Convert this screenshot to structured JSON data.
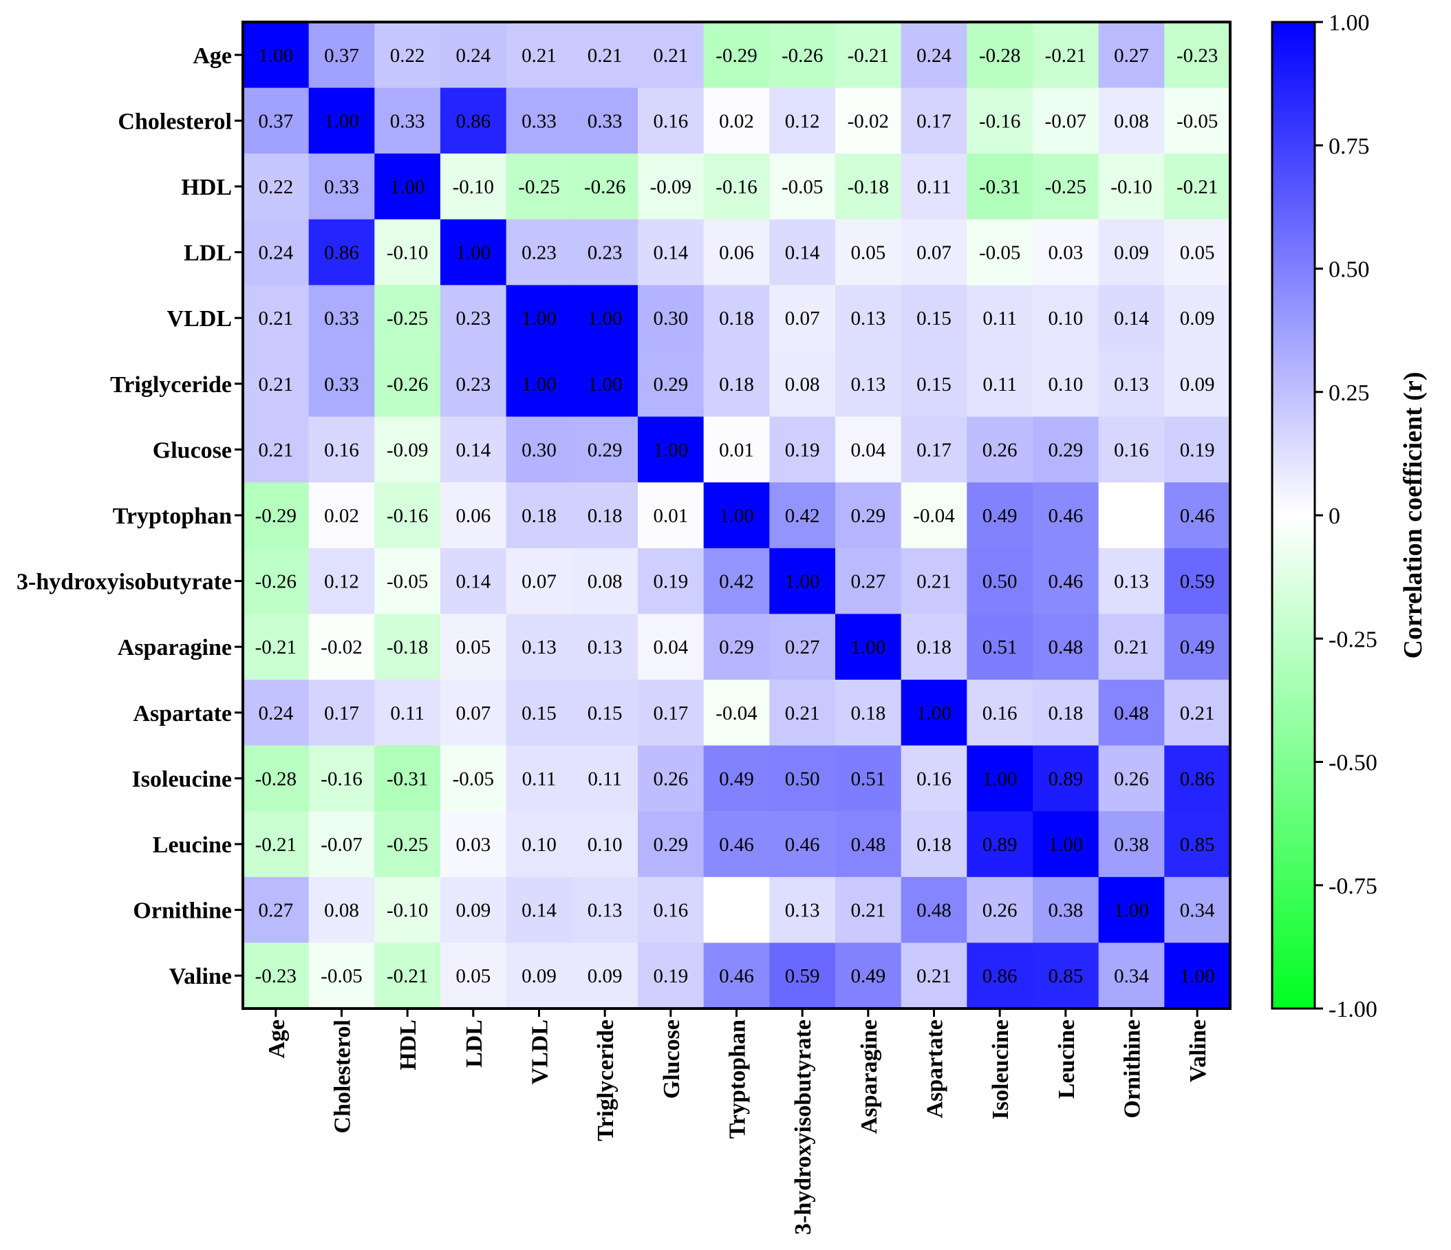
{
  "chart_data": {
    "type": "heatmap",
    "variables": [
      "Age",
      "Cholesterol",
      "HDL",
      "LDL",
      "VLDL",
      "Triglyceride",
      "Glucose",
      "Tryptophan",
      "3-hydroxyisobutyrate",
      "Asparagine",
      "Aspartate",
      "Isoleucine",
      "Leucine",
      "Ornithine",
      "Valine"
    ],
    "values": [
      [
        1.0,
        0.37,
        0.22,
        0.24,
        0.21,
        0.21,
        0.21,
        -0.29,
        -0.26,
        -0.21,
        0.24,
        -0.28,
        -0.21,
        0.27,
        -0.23
      ],
      [
        0.37,
        1.0,
        0.33,
        0.86,
        0.33,
        0.33,
        0.16,
        0.02,
        0.12,
        -0.02,
        0.17,
        -0.16,
        -0.07,
        0.08,
        -0.05
      ],
      [
        0.22,
        0.33,
        1.0,
        -0.1,
        -0.25,
        -0.26,
        -0.09,
        -0.16,
        -0.05,
        -0.18,
        0.11,
        -0.31,
        -0.25,
        -0.1,
        -0.21
      ],
      [
        0.24,
        0.86,
        -0.1,
        1.0,
        0.23,
        0.23,
        0.14,
        0.06,
        0.14,
        0.05,
        0.07,
        -0.05,
        0.03,
        0.09,
        0.05
      ],
      [
        0.21,
        0.33,
        -0.25,
        0.23,
        1.0,
        1.0,
        0.3,
        0.18,
        0.07,
        0.13,
        0.15,
        0.11,
        0.1,
        0.14,
        0.09
      ],
      [
        0.21,
        0.33,
        -0.26,
        0.23,
        1.0,
        1.0,
        0.29,
        0.18,
        0.08,
        0.13,
        0.15,
        0.11,
        0.1,
        0.13,
        0.09
      ],
      [
        0.21,
        0.16,
        -0.09,
        0.14,
        0.3,
        0.29,
        1.0,
        0.01,
        0.19,
        0.04,
        0.17,
        0.26,
        0.29,
        0.16,
        0.19
      ],
      [
        -0.29,
        0.02,
        -0.16,
        0.06,
        0.18,
        0.18,
        0.01,
        1.0,
        0.42,
        0.29,
        -0.04,
        0.49,
        0.46,
        null,
        0.46
      ],
      [
        -0.26,
        0.12,
        -0.05,
        0.14,
        0.07,
        0.08,
        0.19,
        0.42,
        1.0,
        0.27,
        0.21,
        0.5,
        0.46,
        0.13,
        0.59
      ],
      [
        -0.21,
        -0.02,
        -0.18,
        0.05,
        0.13,
        0.13,
        0.04,
        0.29,
        0.27,
        1.0,
        0.18,
        0.51,
        0.48,
        0.21,
        0.49
      ],
      [
        0.24,
        0.17,
        0.11,
        0.07,
        0.15,
        0.15,
        0.17,
        -0.04,
        0.21,
        0.18,
        1.0,
        0.16,
        0.18,
        0.48,
        0.21
      ],
      [
        -0.28,
        -0.16,
        -0.31,
        -0.05,
        0.11,
        0.11,
        0.26,
        0.49,
        0.5,
        0.51,
        0.16,
        1.0,
        0.89,
        0.26,
        0.86
      ],
      [
        -0.21,
        -0.07,
        -0.25,
        0.03,
        0.1,
        0.1,
        0.29,
        0.46,
        0.46,
        0.48,
        0.18,
        0.89,
        1.0,
        0.38,
        0.85
      ],
      [
        0.27,
        0.08,
        -0.1,
        0.09,
        0.14,
        0.13,
        0.16,
        null,
        0.13,
        0.21,
        0.48,
        0.26,
        0.38,
        1.0,
        0.34
      ],
      [
        -0.23,
        -0.05,
        -0.21,
        0.05,
        0.09,
        0.09,
        0.19,
        0.46,
        0.59,
        0.49,
        0.21,
        0.86,
        0.85,
        0.34,
        1.0
      ]
    ],
    "value_range": [
      -1.0,
      1.0
    ],
    "colorbar": {
      "title": "Correlation coefficient (r)",
      "ticks": [
        1.0,
        0.75,
        0.5,
        0.25,
        0,
        -0.25,
        -0.5,
        -0.75,
        -1.0
      ],
      "tick_labels": [
        "1.00",
        "0.75",
        "0.50",
        "0.25",
        "0",
        "-0.25",
        "-0.50",
        "-0.75",
        "-1.00"
      ],
      "colors": {
        "max": "#0000ff",
        "mid": "#ffffff",
        "min": "#00ff22"
      }
    },
    "legend_position": "right"
  }
}
